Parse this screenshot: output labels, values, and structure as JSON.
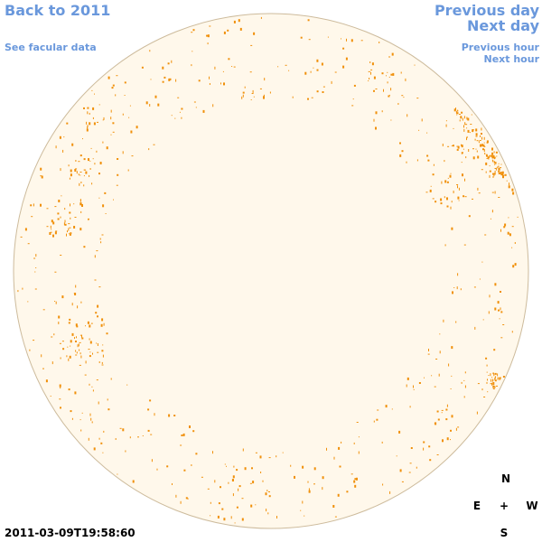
{
  "header": {
    "back_link": "Back to 2011",
    "facular_link": "See facular data",
    "previous_day": "Previous day",
    "next_day": "Next day",
    "previous_hour": "Previous hour",
    "next_hour": "Next hour"
  },
  "timestamp": "2011-03-09T19:58:60",
  "compass": {
    "north": "N",
    "east": "E",
    "center": "+",
    "west": "W",
    "south": "S"
  }
}
